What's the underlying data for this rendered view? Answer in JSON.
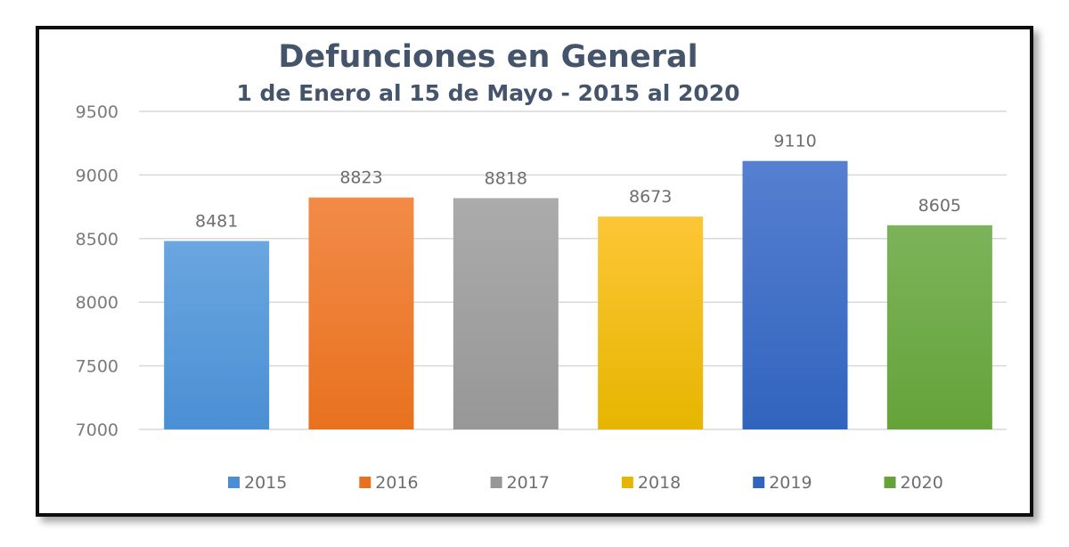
{
  "chart_data": {
    "type": "bar",
    "title": "Defunciones en General",
    "subtitle": "1 de Enero al 15 de Mayo - 2015 al 2020",
    "xlabel": "",
    "ylabel": "",
    "ylim": [
      7000,
      9500
    ],
    "yticks": [
      7000,
      7500,
      8000,
      8500,
      9000,
      9500
    ],
    "ytick_labels": [
      "7000",
      "7500",
      "8000",
      "8500",
      "9000",
      "9500"
    ],
    "grid": true,
    "legend_position": "bottom",
    "categories": [
      "2015",
      "2016",
      "2017",
      "2018",
      "2019",
      "2020"
    ],
    "values": [
      8481,
      8823,
      8818,
      8673,
      9110,
      8605
    ],
    "data_labels": [
      "8481",
      "8823",
      "8818",
      "8673",
      "9110",
      "8605"
    ],
    "series": [
      {
        "name": "2015",
        "value": 8481,
        "color": "#4a8fd3",
        "color_top": "#6aa6e0"
      },
      {
        "name": "2016",
        "value": 8823,
        "color": "#e8711f",
        "color_top": "#f28b48"
      },
      {
        "name": "2017",
        "value": 8818,
        "color": "#979797",
        "color_top": "#ababab"
      },
      {
        "name": "2018",
        "value": 8673,
        "color": "#e6b500",
        "color_top": "#fcc636"
      },
      {
        "name": "2019",
        "value": 9110,
        "color": "#3164be",
        "color_top": "#567fd0"
      },
      {
        "name": "2020",
        "value": 8605,
        "color": "#65a33a",
        "color_top": "#7cb35a"
      }
    ]
  }
}
